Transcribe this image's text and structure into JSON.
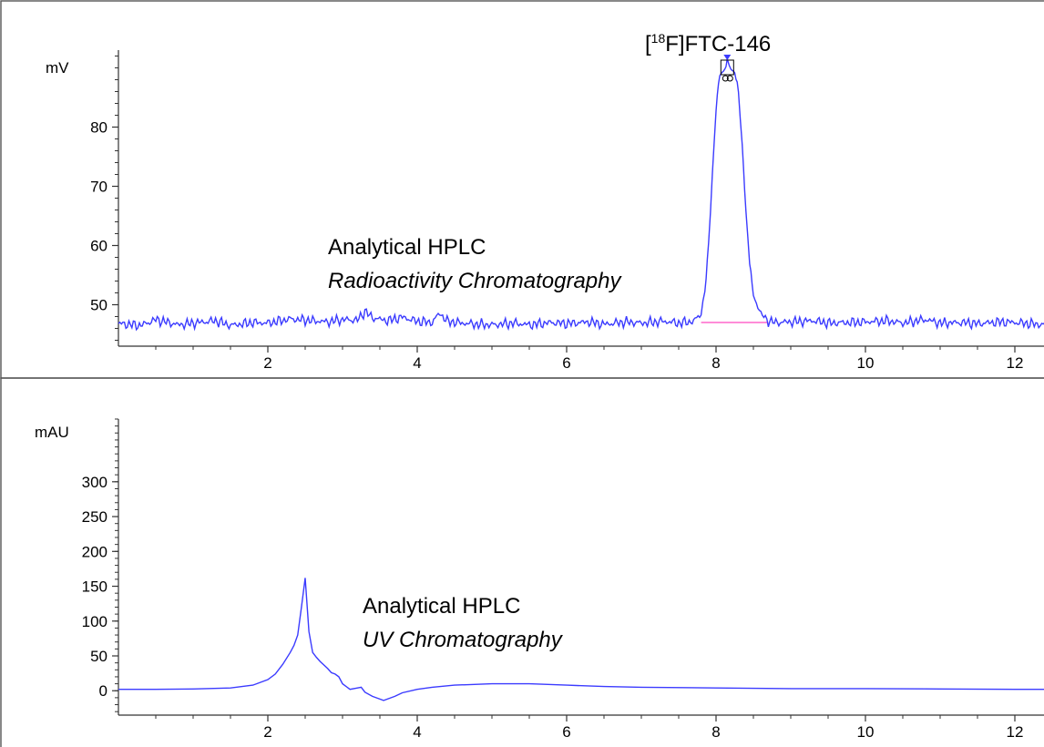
{
  "chart_data": [
    {
      "type": "line",
      "panel": "top",
      "ylabel": "mV",
      "xlabel": "",
      "xlim": [
        0,
        12.5
      ],
      "ylim": [
        43,
        93
      ],
      "x_ticks": [
        2,
        4,
        6,
        8,
        10,
        12
      ],
      "y_ticks": [
        50,
        60,
        70,
        80
      ],
      "annotation_line1": "Analytical HPLC",
      "annotation_line2": "Radioactivity Chromatography",
      "peak_label_prefix": "[",
      "peak_label_sup": "18",
      "peak_label_suffix": "F]FTC-146",
      "peak": {
        "x": 8.15,
        "y": 91
      },
      "baseline_marker": {
        "x_start": 7.8,
        "x_end": 8.7,
        "y": 47,
        "color": "#ff66cc"
      },
      "series": [
        {
          "x": [
            0,
            0.3,
            0.5,
            0.8,
            1.0,
            1.3,
            1.5,
            1.8,
            2.0,
            2.3,
            2.5,
            2.8,
            3.0,
            3.2,
            3.3,
            3.4,
            3.6,
            3.8,
            4.0,
            4.2,
            4.3,
            4.4,
            4.6,
            4.8,
            5.0,
            5.3,
            5.5,
            5.8,
            6.0,
            6.3,
            6.5,
            6.8,
            7.0,
            7.3,
            7.5,
            7.7,
            7.8,
            7.85,
            7.9,
            7.95,
            8.0,
            8.05,
            8.1,
            8.15,
            8.2,
            8.25,
            8.3,
            8.35,
            8.4,
            8.45,
            8.5,
            8.6,
            8.7,
            8.8,
            9.0,
            9.3,
            9.5,
            9.8,
            10.0,
            10.3,
            10.5,
            10.8,
            11.0,
            11.3,
            11.5,
            11.8,
            12.0,
            12.3,
            12.5
          ],
          "y": [
            46.8,
            46.5,
            47.5,
            46.6,
            46.9,
            47.3,
            46.5,
            47.0,
            46.9,
            47.6,
            47.4,
            47.1,
            47.5,
            47.4,
            48.9,
            47.8,
            47.3,
            47.9,
            47.2,
            47.0,
            48.6,
            47.2,
            46.9,
            46.7,
            46.6,
            46.9,
            46.6,
            47.0,
            46.8,
            47.1,
            46.7,
            47.1,
            46.9,
            47.2,
            46.9,
            47.2,
            48.5,
            52.0,
            60.0,
            72.0,
            83.0,
            89.0,
            89.5,
            91.0,
            89.5,
            89.5,
            86.0,
            77.0,
            66.0,
            57.0,
            51.5,
            48.5,
            47.3,
            47.0,
            47.1,
            47.3,
            46.9,
            47.0,
            47.1,
            47.3,
            46.9,
            47.5,
            46.9,
            47.0,
            46.8,
            47.1,
            47.0,
            46.7,
            46.5
          ]
        }
      ]
    },
    {
      "type": "line",
      "panel": "bottom",
      "ylabel": "mAU",
      "xlabel": "",
      "xlim": [
        0,
        12.5
      ],
      "ylim": [
        -35,
        390
      ],
      "x_ticks": [
        2,
        4,
        6,
        8,
        10,
        12
      ],
      "y_ticks": [
        0,
        50,
        100,
        150,
        200,
        250,
        300
      ],
      "annotation_line1": "Analytical HPLC",
      "annotation_line2": "UV Chromatography",
      "series": [
        {
          "x": [
            0,
            0.5,
            1.0,
            1.5,
            1.8,
            2.0,
            2.1,
            2.2,
            2.3,
            2.35,
            2.4,
            2.45,
            2.5,
            2.55,
            2.6,
            2.65,
            2.7,
            2.8,
            2.85,
            2.9,
            2.95,
            3.0,
            3.1,
            3.2,
            3.25,
            3.3,
            3.4,
            3.5,
            3.55,
            3.6,
            3.7,
            3.8,
            4.0,
            4.2,
            4.5,
            5.0,
            5.5,
            6.0,
            6.5,
            7.0,
            8.0,
            9.0,
            10.0,
            11.0,
            12.0,
            12.5
          ],
          "y": [
            2,
            2,
            2.5,
            4,
            8,
            16,
            24,
            38,
            55,
            65,
            80,
            120,
            162,
            85,
            55,
            48,
            42,
            32,
            26,
            24,
            20,
            10,
            2,
            4,
            5,
            -2,
            -8,
            -12,
            -14,
            -12,
            -8,
            -3,
            2,
            5,
            8,
            10,
            10,
            8,
            6,
            5,
            4,
            3,
            3,
            2.5,
            2,
            2
          ]
        }
      ]
    }
  ]
}
